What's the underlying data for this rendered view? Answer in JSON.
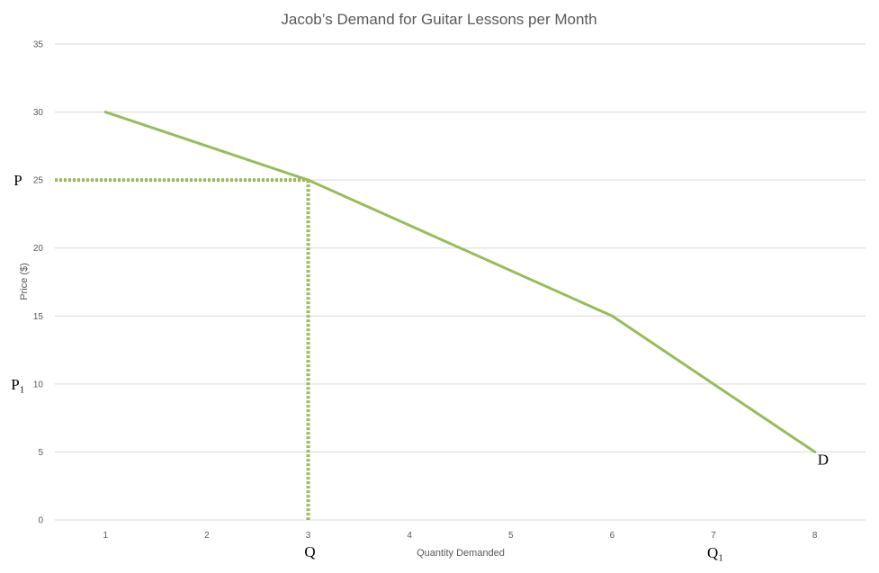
{
  "chart_data": {
    "type": "line",
    "title": "Jacob’s Demand for Guitar Lessons per Month",
    "xlabel": "Quantity Demanded",
    "ylabel": "Price ($)",
    "x_ticks": [
      1,
      2,
      3,
      4,
      5,
      6,
      7,
      8
    ],
    "y_ticks": [
      0,
      5,
      10,
      15,
      20,
      25,
      30,
      35
    ],
    "xlim": [
      0.5,
      8.5
    ],
    "ylim": [
      0,
      35
    ],
    "grid": "horizontal",
    "series": [
      {
        "points": [
          {
            "x": 1,
            "y": 30
          },
          {
            "x": 3,
            "y": 25
          },
          {
            "x": 6,
            "y": 15
          },
          {
            "x": 8,
            "y": 5
          }
        ],
        "color": "#9bbb59"
      }
    ],
    "guides": {
      "color": "#9bbb59",
      "point": {
        "x": 3,
        "y": 25
      }
    },
    "annotations": {
      "p_label": "P",
      "p1_label": "P₁",
      "p1_value": 10,
      "q_label": "Q",
      "q1_label": "Q₁",
      "q1_value": 7,
      "d_label": "D"
    }
  }
}
